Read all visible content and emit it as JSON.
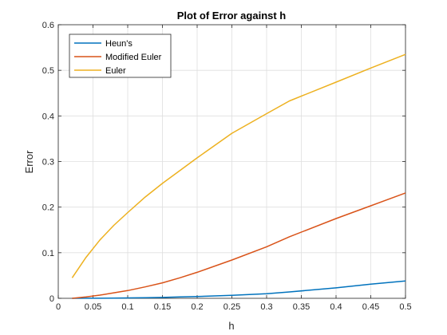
{
  "chart_data": {
    "type": "line",
    "title": "Plot of Error against h",
    "xlabel": "h",
    "ylabel": "Error",
    "xlim": [
      0,
      0.5
    ],
    "ylim": [
      0,
      0.6
    ],
    "xticks": [
      0,
      0.05,
      0.1,
      0.15,
      0.2,
      0.25,
      0.3,
      0.35,
      0.4,
      0.45,
      0.5
    ],
    "yticks": [
      0,
      0.1,
      0.2,
      0.3,
      0.4,
      0.5,
      0.6
    ],
    "xtick_labels": [
      "0",
      "0.05",
      "0.1",
      "0.15",
      "0.2",
      "0.25",
      "0.3",
      "0.35",
      "0.4",
      "0.45",
      "0.5"
    ],
    "ytick_labels": [
      "0",
      "0.1",
      "0.2",
      "0.3",
      "0.4",
      "0.5",
      "0.6"
    ],
    "grid": true,
    "legend_position": "top-left",
    "x": [
      0.02,
      0.04,
      0.06,
      0.08,
      0.1,
      0.125,
      0.15,
      0.175,
      0.2,
      0.25,
      0.3,
      0.333,
      0.4,
      0.45,
      0.5
    ],
    "series": [
      {
        "name": "Heun's",
        "color": "#0072BD",
        "values": [
          0.0,
          0.0001,
          0.0002,
          0.0004,
          0.0008,
          0.0013,
          0.002,
          0.003,
          0.004,
          0.0065,
          0.01,
          0.014,
          0.023,
          0.031,
          0.038
        ]
      },
      {
        "name": "Modified Euler",
        "color": "#D95319",
        "values": [
          0.0,
          0.003,
          0.007,
          0.012,
          0.017,
          0.025,
          0.034,
          0.045,
          0.057,
          0.084,
          0.113,
          0.135,
          0.175,
          0.203,
          0.231
        ]
      },
      {
        "name": "Euler",
        "color": "#EDB120",
        "values": [
          0.045,
          0.09,
          0.128,
          0.16,
          0.188,
          0.222,
          0.252,
          0.28,
          0.308,
          0.362,
          0.405,
          0.433,
          0.474,
          0.505,
          0.535
        ]
      }
    ]
  }
}
